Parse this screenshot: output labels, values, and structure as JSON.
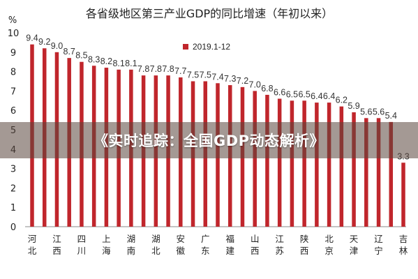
{
  "banner": {
    "text": "《实时追踪：全国GDP动态解析》"
  },
  "chart_data": {
    "type": "bar",
    "title": "各省级地区第三产业GDP的同比增速（年初以来）",
    "ylabel": "%",
    "ylim": [
      0,
      10
    ],
    "yticks": [
      "0",
      "1",
      "2",
      "3",
      "4",
      "5",
      "6",
      "7",
      "8",
      "9",
      "10"
    ],
    "legend": {
      "label": "2019.1-12",
      "position": "top-center"
    },
    "bar_color": "#c0262c",
    "categories": [
      "河北",
      "",
      "江西",
      "",
      "四川",
      "",
      "上海",
      "",
      "湖南",
      "",
      "湖北",
      "",
      "安徽",
      "",
      "广东",
      "",
      "福建",
      "",
      "山西",
      "",
      "江苏",
      "",
      "陕西",
      "",
      "北京",
      "",
      "天津",
      "",
      "辽宁",
      "",
      "吉林"
    ],
    "values": [
      9.4,
      9.2,
      9.0,
      8.7,
      8.5,
      8.3,
      8.2,
      8.1,
      8.1,
      7.8,
      7.8,
      7.8,
      7.7,
      7.5,
      7.5,
      7.4,
      7.3,
      7.2,
      7.0,
      6.8,
      6.6,
      6.5,
      6.5,
      6.4,
      6.4,
      6.2,
      5.9,
      5.6,
      5.6,
      5.4,
      3.3
    ],
    "value_labels": [
      "9.4",
      "9.2",
      "9.0",
      "8.7",
      "8.5",
      "8.3",
      "8.2",
      "8.1",
      "8.1",
      "7.8",
      "7.8",
      "7.8",
      "7.7",
      "7.5",
      "7.5",
      "7.4",
      "7.3",
      "7.2",
      "7.0",
      "6.8",
      "6.6",
      "6.5",
      "6.5",
      "6.4",
      "6.4",
      "6.2",
      "5.9",
      "5.6",
      "5.6",
      "5.4",
      "3.3"
    ],
    "grid": false
  }
}
